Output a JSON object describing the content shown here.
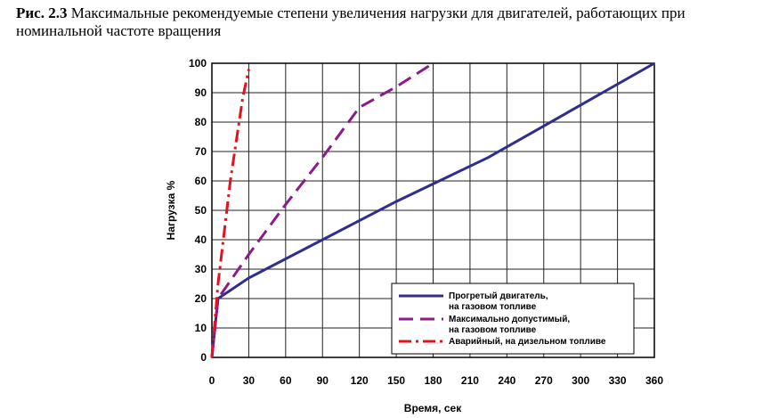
{
  "chart_data": {
    "type": "line",
    "title_label": "Рис. 2.3",
    "title": "Максимальные рекомендуемые степени увеличения нагрузки для двигателей, работающих при",
    "title_line2": "номинальной частоте вращения",
    "x_label": "Время, сек",
    "y_label": "Нагрузка %",
    "xlim": [
      0,
      360
    ],
    "xticks": [
      0,
      30,
      60,
      90,
      120,
      150,
      180,
      210,
      240,
      270,
      300,
      330,
      360
    ],
    "ylim": [
      0,
      100
    ],
    "yticks": [
      0,
      10,
      20,
      30,
      40,
      50,
      60,
      70,
      80,
      90,
      100
    ],
    "grid": true,
    "legend": "lower right",
    "series": [
      {
        "name": [
          "Прогретый двигатель,",
          "на газовом топливе"
        ],
        "color": "#2e2e8f",
        "dash": "solid",
        "x": [
          0,
          5,
          30,
          90,
          150,
          225,
          360
        ],
        "values": [
          0,
          20,
          27,
          40,
          53,
          68,
          100
        ]
      },
      {
        "name": [
          "Максимально допустимый,",
          "на газовом топливе"
        ],
        "color": "#8b1a8b",
        "dash": "dashed",
        "x": [
          0,
          5,
          30,
          60,
          90,
          120,
          150,
          180
        ],
        "values": [
          0,
          20,
          35,
          52,
          68,
          85,
          92,
          100
        ]
      },
      {
        "name": [
          "Аварийный, на дизельном топливе"
        ],
        "color": "#e8101a",
        "dash": "dashdot",
        "x": [
          0,
          5,
          15,
          25,
          30
        ],
        "values": [
          0,
          25,
          60,
          88,
          98
        ]
      }
    ]
  }
}
